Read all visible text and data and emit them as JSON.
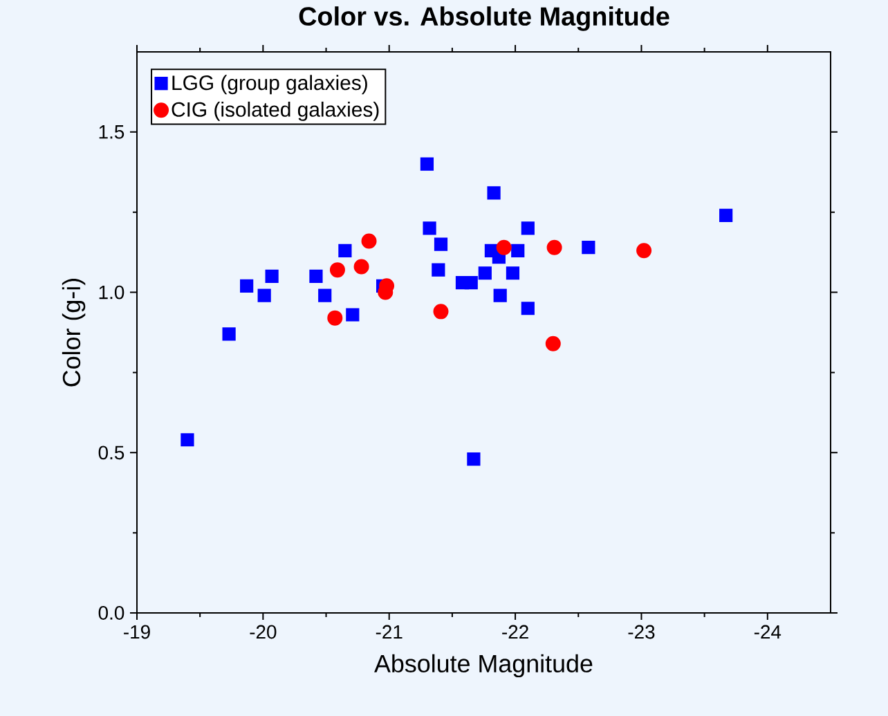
{
  "chart_data": {
    "type": "scatter",
    "title": "Color vs. Absolute Magnitude",
    "xlabel": "Absolute Magnitude",
    "ylabel": "Color (g-i)",
    "xlim": [
      -19,
      -24.5
    ],
    "xticks": [
      -19,
      -20,
      -21,
      -22,
      -23,
      -24
    ],
    "ylim": [
      0,
      1.75
    ],
    "yticks": [
      {
        "value": 0,
        "label": "0.0"
      },
      0.5,
      {
        "value": 1,
        "label": "1.0"
      },
      1.5
    ],
    "grid": false,
    "legend": "top left",
    "series": [
      {
        "name": "LGG (group galaxies)",
        "color": "#0000ff",
        "marker": "square",
        "x": [
          -19.4,
          -19.73,
          -19.87,
          -20.01,
          -20.07,
          -20.42,
          -20.49,
          -20.65,
          -20.71,
          -20.95,
          -21.3,
          -21.32,
          -21.41,
          -21.39,
          -21.58,
          -21.65,
          -21.67,
          -21.76,
          -21.81,
          -21.83,
          -21.87,
          -21.88,
          -21.98,
          -22.02,
          -22.1,
          -22.1,
          -22.58,
          -23.67
        ],
        "values": [
          0.54,
          0.87,
          1.02,
          0.99,
          1.05,
          1.05,
          0.99,
          1.13,
          0.93,
          1.02,
          1.4,
          1.2,
          1.15,
          1.07,
          1.03,
          1.03,
          0.48,
          1.06,
          1.13,
          1.31,
          1.11,
          0.99,
          1.06,
          1.13,
          1.2,
          0.95,
          1.14,
          1.24
        ]
      },
      {
        "name": "CIG (isolated galaxies)",
        "color": "#ff0000",
        "marker": "circle",
        "x": [
          -20.57,
          -20.59,
          -20.78,
          -20.84,
          -20.97,
          -20.98,
          -21.41,
          -21.91,
          -22.31,
          -22.3,
          -23.02
        ],
        "values": [
          0.92,
          1.07,
          1.08,
          1.16,
          1.0,
          1.02,
          0.94,
          1.14,
          1.14,
          0.84,
          1.13
        ]
      }
    ]
  }
}
